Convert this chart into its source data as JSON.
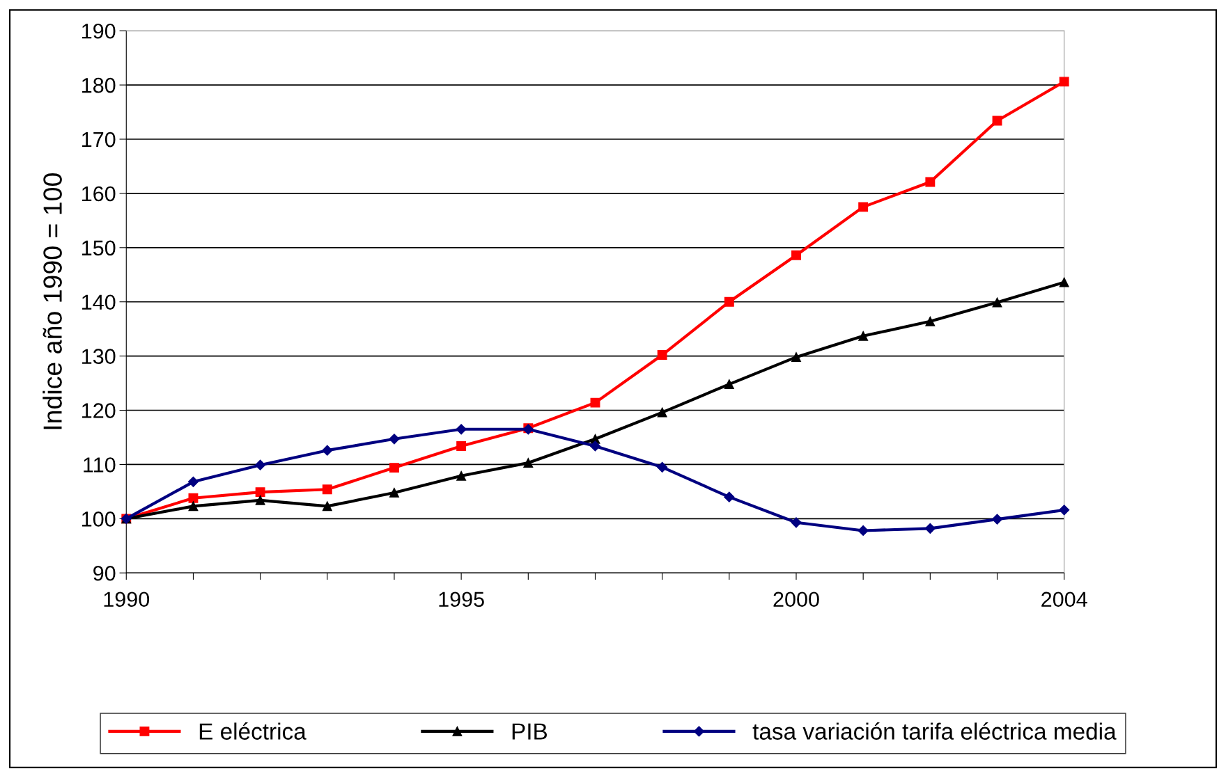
{
  "chart_data": {
    "type": "line",
    "ylabel": "Indice año 1990 = 100",
    "x": [
      1990,
      1991,
      1992,
      1993,
      1994,
      1995,
      1996,
      1997,
      1998,
      1999,
      2000,
      2001,
      2002,
      2003,
      2004
    ],
    "series": [
      {
        "name": "E eléctrica",
        "color": "#ff0000",
        "marker": "square",
        "values": [
          100,
          103.8,
          104.9,
          105.4,
          109.4,
          113.4,
          116.7,
          121.4,
          130.2,
          140,
          148.6,
          157.5,
          162.1,
          173.4,
          180.6
        ]
      },
      {
        "name": "PIB",
        "color": "#000000",
        "marker": "triangle",
        "values": [
          100,
          102.3,
          103.4,
          102.3,
          104.8,
          107.9,
          110.3,
          114.7,
          119.6,
          124.8,
          129.8,
          133.7,
          136.4,
          139.9,
          143.6
        ]
      },
      {
        "name": "tasa variación tarifa eléctrica media",
        "color": "#000080",
        "marker": "diamond",
        "values": [
          100,
          106.8,
          109.9,
          112.6,
          114.7,
          116.5,
          116.5,
          113.4,
          109.5,
          104,
          99.3,
          97.8,
          98.2,
          99.9,
          101.6
        ]
      }
    ],
    "xlim": [
      1990,
      2004
    ],
    "xticks": [
      1990,
      {
        "value": 1991,
        "label": null
      },
      {
        "value": 1992,
        "label": null
      },
      {
        "value": 1993,
        "label": null
      },
      {
        "value": 1994,
        "label": null
      },
      1995,
      {
        "value": 1996,
        "label": null
      },
      {
        "value": 1997,
        "label": null
      },
      {
        "value": 1998,
        "label": null
      },
      {
        "value": 1999,
        "label": null
      },
      2000,
      {
        "value": 2001,
        "label": null
      },
      {
        "value": 2002,
        "label": null
      },
      {
        "value": 2003,
        "label": null
      },
      2004
    ],
    "ylim": [
      90,
      190
    ],
    "yticks": [
      90,
      100,
      110,
      120,
      130,
      140,
      150,
      160,
      170,
      180,
      190
    ],
    "grid": "y",
    "legend": "bottom",
    "line_style": "solid"
  }
}
